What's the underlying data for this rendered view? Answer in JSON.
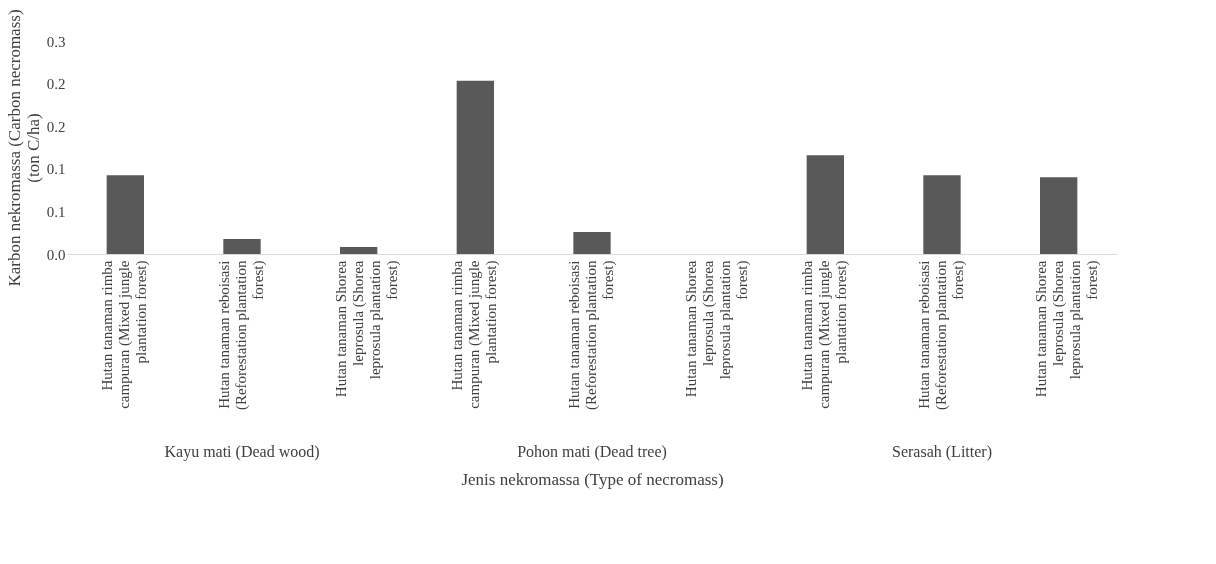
{
  "chart_data": {
    "type": "bar",
    "xlabel": "Jenis nekromassa (Type of necromass)",
    "ylabel": "Karbon nekromassa (Carbon necromass) (ton C/ha)",
    "categories": [
      "Hutan tanaman rimba campuran (Mixed jungle plantation forest)",
      "Hutan tanaman reboisasi (Reforestation plantation forest)",
      "Hutan tanaman Shorea leprosula (Shorea leprosula plantation forest)",
      "Hutan tanaman rimba campuran (Mixed jungle plantation forest)",
      "Hutan tanaman reboisasi (Reforestation plantation forest)",
      "Hutan tanaman Shorea leprosula (Shorea leprosula plantation forest)",
      "Hutan tanaman rimba campuran (Mixed jungle plantation forest)",
      "Hutan tanaman reboisasi (Reforestation plantation forest)",
      "Hutan tanaman Shorea leprosula (Shorea leprosula plantation forest)"
    ],
    "values": [
      0.111,
      0.021,
      0.01,
      0.244,
      0.031,
      0.0,
      0.139,
      0.111,
      0.108
    ],
    "color": "#595959",
    "ylim": [
      0,
      0.3
    ],
    "yticks": [
      {
        "value": 0,
        "label": "0.0"
      },
      {
        "value": 0.06,
        "label": "0.1"
      },
      {
        "value": 0.12,
        "label": "0.1"
      },
      {
        "value": 0.18,
        "label": "0.2"
      },
      {
        "value": 0.24,
        "label": "0.2"
      },
      {
        "value": 0.3,
        "label": "0.3"
      }
    ],
    "annotations": [
      "Kayu mati (Dead wood)",
      "Pohon mati (Dead tree)",
      "Serasah (Litter)"
    ],
    "grid": false
  }
}
